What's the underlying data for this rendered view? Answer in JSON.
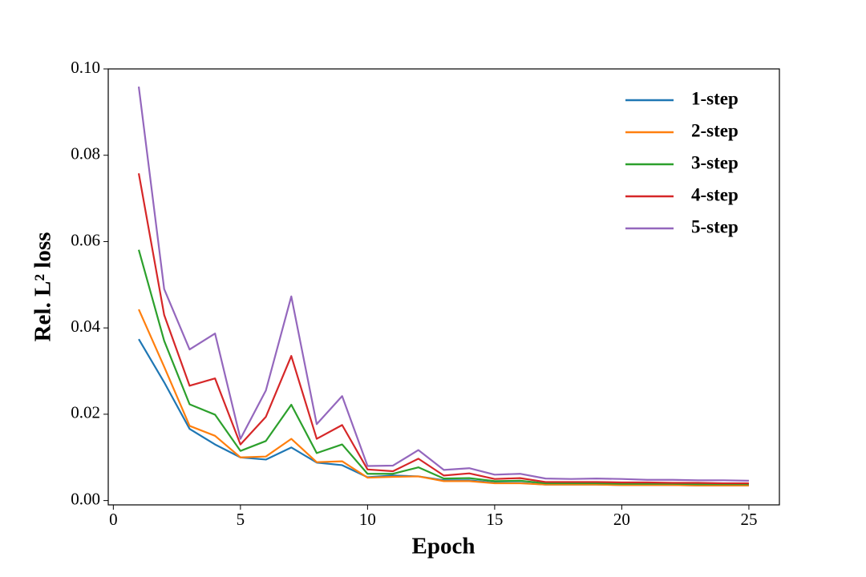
{
  "chart_data": {
    "type": "line",
    "x_label": "Epoch",
    "y_label": "Rel. L² loss",
    "x": [
      1,
      2,
      3,
      4,
      5,
      6,
      7,
      8,
      9,
      10,
      11,
      12,
      13,
      14,
      15,
      16,
      17,
      18,
      19,
      20,
      21,
      22,
      23,
      24,
      25
    ],
    "series": [
      {
        "name": "1-step",
        "color": "#1f77b4",
        "values": [
          0.0374,
          0.0274,
          0.0166,
          0.013,
          0.01,
          0.0095,
          0.0123,
          0.0088,
          0.0082,
          0.0054,
          0.0058,
          0.0056,
          0.0047,
          0.0047,
          0.0041,
          0.0041,
          0.0037,
          0.0037,
          0.0037,
          0.0036,
          0.0036,
          0.0036,
          0.0035,
          0.0035,
          0.0035
        ]
      },
      {
        "name": "2-step",
        "color": "#ff7f0e",
        "values": [
          0.0443,
          0.031,
          0.0173,
          0.015,
          0.01,
          0.0102,
          0.0143,
          0.0089,
          0.0091,
          0.0053,
          0.0055,
          0.0056,
          0.0045,
          0.0045,
          0.004,
          0.004,
          0.0037,
          0.0037,
          0.0037,
          0.0036,
          0.0036,
          0.0036,
          0.0035,
          0.0035,
          0.0035
        ]
      },
      {
        "name": "3-step",
        "color": "#2ca02c",
        "values": [
          0.0581,
          0.037,
          0.0223,
          0.0199,
          0.0115,
          0.0138,
          0.0222,
          0.011,
          0.013,
          0.0062,
          0.0062,
          0.0077,
          0.0051,
          0.0052,
          0.0045,
          0.0046,
          0.004,
          0.004,
          0.004,
          0.0039,
          0.0039,
          0.0039,
          0.0038,
          0.0038,
          0.0038
        ]
      },
      {
        "name": "4-step",
        "color": "#d62728",
        "values": [
          0.0758,
          0.043,
          0.0266,
          0.0283,
          0.013,
          0.0194,
          0.0335,
          0.0143,
          0.0175,
          0.0072,
          0.0068,
          0.0097,
          0.0058,
          0.0063,
          0.005,
          0.0052,
          0.0043,
          0.0043,
          0.0043,
          0.0042,
          0.0042,
          0.0041,
          0.0041,
          0.004,
          0.004
        ]
      },
      {
        "name": "5-step",
        "color": "#9467bd",
        "values": [
          0.0959,
          0.049,
          0.035,
          0.0387,
          0.0143,
          0.0255,
          0.0473,
          0.0177,
          0.0242,
          0.008,
          0.0081,
          0.0117,
          0.0071,
          0.0075,
          0.006,
          0.0062,
          0.0051,
          0.005,
          0.0051,
          0.005,
          0.0048,
          0.0048,
          0.0047,
          0.0047,
          0.0046
        ]
      }
    ],
    "xlim": [
      -0.2,
      26.2
    ],
    "xticks": [
      0,
      5,
      10,
      15,
      20,
      25
    ],
    "ylim": [
      -0.001,
      0.1
    ],
    "yticks": [
      {
        "value": 0,
        "label": "0.00"
      },
      {
        "value": 0.02,
        "label": "0.02"
      },
      {
        "value": 0.04,
        "label": "0.04"
      },
      {
        "value": 0.06,
        "label": "0.06"
      },
      {
        "value": 0.08,
        "label": "0.08"
      },
      {
        "value": 0.1,
        "label": "0.10"
      }
    ],
    "legend": "upper right",
    "grid": false
  }
}
